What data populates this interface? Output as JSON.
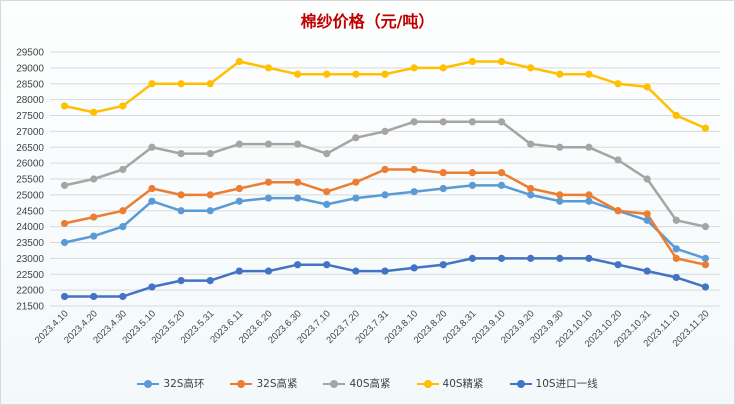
{
  "chart_data": {
    "type": "line",
    "title": "棉纱价格（元/吨）",
    "xlabel": "",
    "ylabel": "",
    "ylim": [
      21500,
      29500
    ],
    "yticks": [
      21500,
      22000,
      22500,
      23000,
      23500,
      24000,
      24500,
      25000,
      25500,
      26000,
      26500,
      27000,
      27500,
      28000,
      28500,
      29000,
      29500
    ],
    "grid": true,
    "legend": "bottom",
    "categories": [
      "2023.4.10",
      "2023.4.20",
      "2023.4.30",
      "2023.5.10",
      "2023.5.20",
      "2023.5.31",
      "2023.6.11",
      "2023.6.20",
      "2023.6.30",
      "2023.7.10",
      "2023.7.20",
      "2023.7.31",
      "2023.8.10",
      "2023.8.20",
      "2023.8.31",
      "2023.9.10",
      "2023.9.20",
      "2023.9.30",
      "2023.10.10",
      "2023.10.20",
      "2023.10.31",
      "2023.11.10",
      "2023.11.20"
    ],
    "series": [
      {
        "name": "32S高环",
        "color": "#5b9bd5",
        "values": [
          23500,
          23700,
          24000,
          24800,
          24500,
          24500,
          24800,
          24900,
          24900,
          24700,
          24900,
          25000,
          25100,
          25200,
          25300,
          25300,
          25000,
          24800,
          24800,
          24500,
          24200,
          23300,
          23000
        ]
      },
      {
        "name": "32S高紧",
        "color": "#ed7d31",
        "values": [
          24100,
          24300,
          24500,
          25200,
          25000,
          25000,
          25200,
          25400,
          25400,
          25100,
          25400,
          25800,
          25800,
          25700,
          25700,
          25700,
          25200,
          25000,
          25000,
          24500,
          24400,
          23000,
          22800
        ]
      },
      {
        "name": "40S高紧",
        "color": "#a5a5a5",
        "values": [
          25300,
          25500,
          25800,
          26500,
          26300,
          26300,
          26600,
          26600,
          26600,
          26300,
          26800,
          27000,
          27300,
          27300,
          27300,
          27300,
          26600,
          26500,
          26500,
          26100,
          25500,
          24200,
          24000
        ]
      },
      {
        "name": "40S精紧",
        "color": "#ffc000",
        "values": [
          27800,
          27600,
          27800,
          28500,
          28500,
          28500,
          29200,
          29000,
          28800,
          28800,
          28800,
          28800,
          29000,
          29000,
          29200,
          29200,
          29000,
          28800,
          28800,
          28500,
          28400,
          27500,
          27100
        ]
      },
      {
        "name": "10S进口一线",
        "color": "#4472c4",
        "values": [
          21800,
          21800,
          21800,
          22100,
          22300,
          22300,
          22600,
          22600,
          22800,
          22800,
          22600,
          22600,
          22700,
          22800,
          23000,
          23000,
          23000,
          23000,
          23000,
          22800,
          22600,
          22400,
          22100
        ]
      }
    ]
  }
}
